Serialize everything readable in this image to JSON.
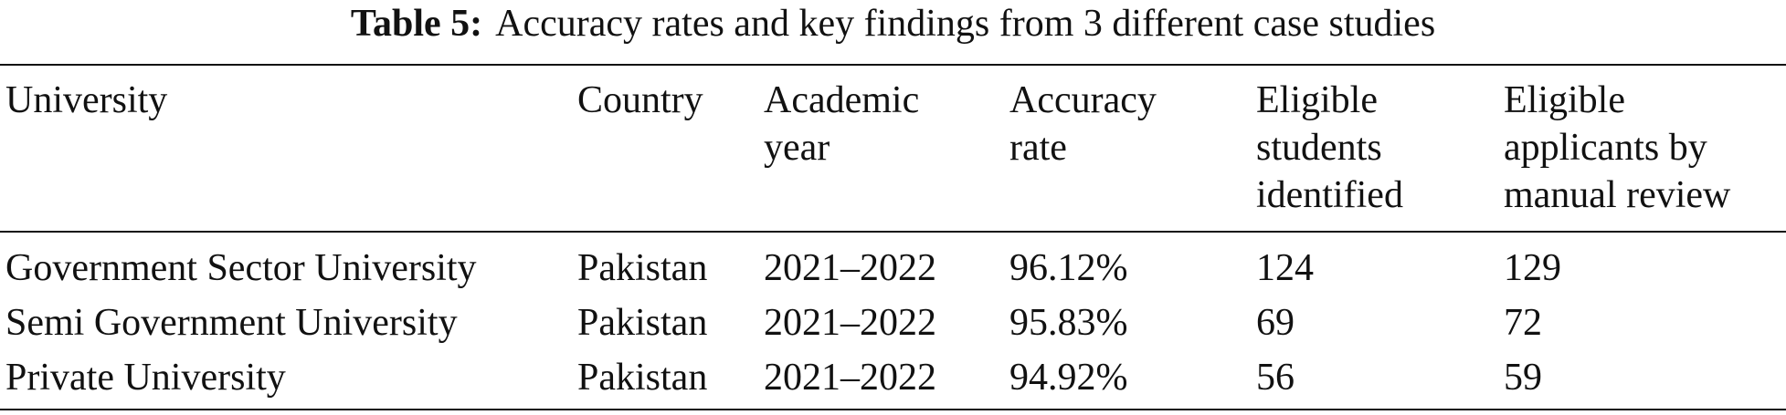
{
  "caption": {
    "label": "Table 5:",
    "text": "Accuracy rates and key findings from 3 different case studies"
  },
  "table": {
    "header": [
      [
        "University"
      ],
      [
        "Country"
      ],
      [
        "Academic",
        "year"
      ],
      [
        "Accuracy",
        "rate"
      ],
      [
        "Eligible",
        "students",
        "identified"
      ],
      [
        "Eligible",
        "applicants by",
        "manual review"
      ]
    ],
    "rows": [
      [
        "Government Sector University",
        "Pakistan",
        "2021–2022",
        "96.12%",
        "124",
        "129"
      ],
      [
        "Semi Government University",
        "Pakistan",
        "2021–2022",
        "95.83%",
        "69",
        "72"
      ],
      [
        "Private University",
        "Pakistan",
        "2021–2022",
        "94.92%",
        "56",
        "59"
      ]
    ]
  }
}
